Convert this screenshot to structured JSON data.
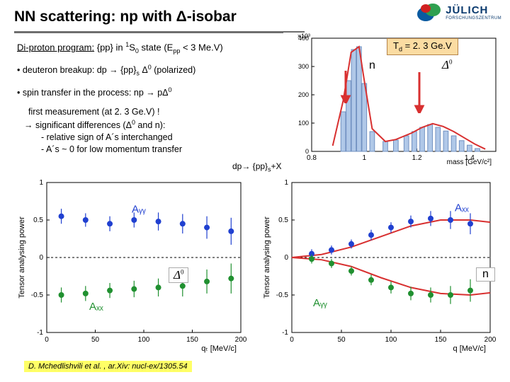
{
  "title": "NN scattering: np with Δ-isobar",
  "logo": {
    "name": "JÜLICH",
    "sub": "FORSCHUNGSZENTRUM"
  },
  "line1_a": "Di-proton program:",
  "line1_b": "  {pp} in ",
  "line1_c": " state (E",
  "line1_d": " < 3 Me.V)",
  "bullet1_a": "• deuteron breakup: dp → {pp}",
  "bullet1_b": " Δ",
  "bullet1_c": "  (polarized)",
  "bullet2": "• spin transfer in the process: np → pΔ",
  "para_a": "first measurement (at 2. 3 Ge.V) !",
  "para_b": "→ significant differences (Δ",
  "para_b2": " and n):",
  "para_c": "- relative sign of A´s interchanged",
  "para_d": "- A´s ~ 0 for low momentum transfer",
  "td_box": "T",
  "td_box2": " = 2. 3 Ge.V",
  "n_label": "n",
  "delta0": "Δ",
  "mid_label": "dp→ {pp}",
  "mid_label2": "+X",
  "citation": "D. Mchedlishvili et al. ,  ar.Xiv: nucl-ex/1305.54",
  "mass_chart": {
    "type": "histogram+curve",
    "xlim": [
      0.8,
      1.5
    ],
    "ylim": [
      0,
      400
    ],
    "xticks": [
      0.8,
      1.0,
      1.2,
      1.4
    ],
    "xlabel": "mass [GeV/c²]",
    "ylabel_power": "×10³",
    "yticks": [
      0,
      100,
      200,
      300,
      400
    ],
    "bar_color": "#b0c8e8",
    "curve_color": "#d83030",
    "grid_color": "#000",
    "bars_x": [
      0.92,
      0.94,
      0.96,
      0.98,
      1.0,
      1.03,
      1.08,
      1.12,
      1.16,
      1.19,
      1.22,
      1.25,
      1.28,
      1.31,
      1.34,
      1.37,
      1.4,
      1.43
    ],
    "bars_y": [
      140,
      250,
      360,
      370,
      240,
      70,
      35,
      40,
      55,
      70,
      85,
      95,
      85,
      72,
      55,
      38,
      22,
      10
    ],
    "curve_x": [
      0.88,
      0.92,
      0.95,
      0.98,
      1.0,
      1.03,
      1.08,
      1.12,
      1.18,
      1.22,
      1.26,
      1.3,
      1.34,
      1.38,
      1.42,
      1.46
    ],
    "curve_y": [
      20,
      180,
      350,
      370,
      250,
      80,
      35,
      42,
      65,
      85,
      98,
      88,
      70,
      48,
      26,
      8
    ]
  },
  "left_chart": {
    "type": "scatter-two-series",
    "xlim": [
      0,
      200
    ],
    "ylim": [
      -1,
      1
    ],
    "xticks": [
      0,
      50,
      100,
      150,
      200
    ],
    "yticks": [
      -1,
      -0.5,
      0,
      0.5,
      1
    ],
    "xlabel": "qₜ [MeV/c]",
    "ylabel": "Tensor analysing power",
    "blue_label": "Aᵧᵧ",
    "green_label": "Aₓₓ",
    "blue_color": "#2040d0",
    "green_color": "#209030",
    "marker_size": 4,
    "blue_x": [
      15,
      40,
      65,
      90,
      115,
      140,
      165,
      190
    ],
    "blue_y": [
      0.55,
      0.5,
      0.45,
      0.5,
      0.48,
      0.45,
      0.4,
      0.35
    ],
    "blue_err": [
      0.1,
      0.09,
      0.1,
      0.1,
      0.12,
      0.13,
      0.15,
      0.18
    ],
    "green_x": [
      15,
      40,
      65,
      90,
      115,
      140,
      165,
      190
    ],
    "green_y": [
      -0.5,
      -0.48,
      -0.44,
      -0.42,
      -0.4,
      -0.38,
      -0.32,
      -0.28
    ],
    "green_err": [
      0.1,
      0.1,
      0.1,
      0.11,
      0.12,
      0.14,
      0.16,
      0.2
    ]
  },
  "right_chart": {
    "type": "scatter-two-series-curves",
    "xlim": [
      0,
      200
    ],
    "ylim": [
      -1,
      1
    ],
    "xticks": [
      0,
      50,
      100,
      150,
      200
    ],
    "yticks": [
      -1,
      -0.5,
      0,
      0.5,
      1
    ],
    "xlabel": "q [MeV/c]",
    "ylabel": "Tensor analysing power",
    "blue_label": "Aₓₓ",
    "green_label": "Aᵧᵧ",
    "blue_color": "#2040d0",
    "green_color": "#209030",
    "curve_color": "#d83030",
    "marker_size": 4,
    "blue_x": [
      20,
      40,
      60,
      80,
      100,
      120,
      140,
      160,
      180
    ],
    "blue_y": [
      0.05,
      0.1,
      0.18,
      0.3,
      0.4,
      0.48,
      0.52,
      0.5,
      0.45
    ],
    "blue_err": [
      0.06,
      0.06,
      0.06,
      0.07,
      0.07,
      0.08,
      0.1,
      0.12,
      0.14
    ],
    "green_x": [
      20,
      40,
      60,
      80,
      100,
      120,
      140,
      160,
      180
    ],
    "green_y": [
      -0.02,
      -0.08,
      -0.18,
      -0.3,
      -0.4,
      -0.48,
      -0.5,
      -0.5,
      -0.44
    ],
    "green_err": [
      0.06,
      0.06,
      0.06,
      0.07,
      0.08,
      0.09,
      0.1,
      0.12,
      0.15
    ],
    "curve1_x": [
      0,
      30,
      60,
      90,
      120,
      150,
      180,
      200
    ],
    "curve1_y": [
      0,
      0.04,
      0.14,
      0.28,
      0.42,
      0.5,
      0.5,
      0.47
    ],
    "curve2_x": [
      0,
      30,
      60,
      90,
      120,
      150,
      180,
      200
    ],
    "curve2_y": [
      0,
      -0.03,
      -0.12,
      -0.27,
      -0.4,
      -0.48,
      -0.5,
      -0.47
    ]
  }
}
